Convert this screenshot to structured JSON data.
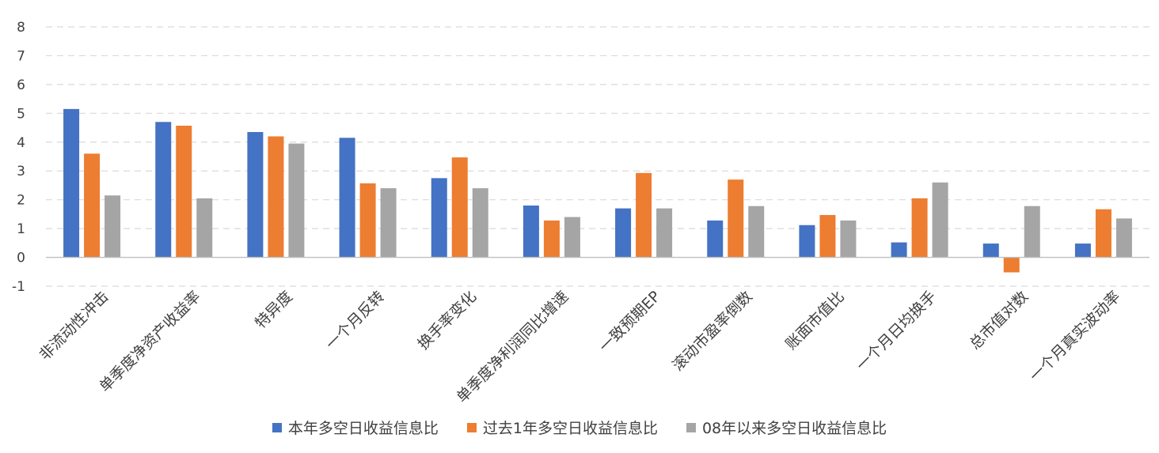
{
  "chart_data": {
    "type": "bar",
    "title": "",
    "xlabel": "",
    "ylabel": "",
    "ylim": [
      -1,
      8
    ],
    "yticks": [
      -1,
      0,
      1,
      2,
      3,
      4,
      5,
      6,
      7,
      8
    ],
    "grid": true,
    "legend_position": "bottom",
    "categories": [
      "非流动性冲击",
      "单季度净资产收益率",
      "特异度",
      "一个月反转",
      "换手率变化",
      "单季度净利润同比增速",
      "一致预期EP",
      "滚动市盈率倒数",
      "账面市值比",
      "一个月日均换手",
      "总市值对数",
      "一个月真实波动率"
    ],
    "series": [
      {
        "name": "本年多空日收益信息比",
        "color": "#4472C4",
        "values": [
          5.15,
          4.7,
          4.35,
          4.15,
          2.75,
          1.8,
          1.7,
          1.28,
          1.12,
          0.52,
          0.48,
          0.48
        ]
      },
      {
        "name": "过去1年多空日收益信息比",
        "color": "#ED7D31",
        "values": [
          3.6,
          4.57,
          4.2,
          2.57,
          3.47,
          1.28,
          2.93,
          2.7,
          1.47,
          2.05,
          -0.52,
          1.67
        ]
      },
      {
        "name": "08年以来多空日收益信息比",
        "color": "#A5A5A5",
        "values": [
          2.15,
          2.05,
          3.95,
          2.4,
          2.4,
          1.4,
          1.7,
          1.78,
          1.28,
          2.6,
          1.78,
          1.35
        ]
      }
    ]
  }
}
